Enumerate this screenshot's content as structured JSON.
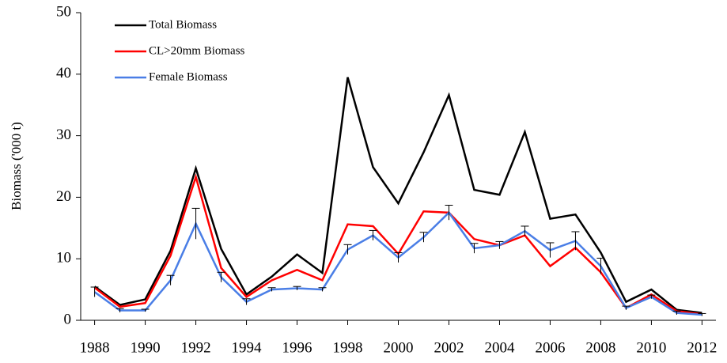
{
  "chart_data": {
    "type": "line",
    "y_label": "Biomass ('000 t)",
    "x": [
      1988,
      1989,
      1990,
      1991,
      1992,
      1993,
      1994,
      1995,
      1996,
      1997,
      1998,
      1999,
      2000,
      2001,
      2002,
      2003,
      2004,
      2005,
      2006,
      2007,
      2008,
      2009,
      2010,
      2011,
      2012
    ],
    "series": [
      {
        "name": "Total Biomass",
        "color": "#000000",
        "values": [
          5.5,
          2.5,
          3.4,
          11.3,
          24.7,
          11.6,
          4.2,
          7.1,
          10.7,
          7.7,
          39.5,
          24.9,
          19.0,
          27.3,
          36.6,
          21.2,
          20.4,
          30.6,
          16.5,
          17.2,
          11.0,
          3.0,
          5.0,
          1.7,
          1.2
        ]
      },
      {
        "name": "CL>20mm Biomass",
        "color": "#ff0000",
        "values": [
          5.3,
          2.2,
          2.8,
          10.5,
          23.3,
          8.5,
          3.8,
          6.5,
          8.2,
          6.5,
          15.6,
          15.3,
          10.8,
          17.7,
          17.5,
          13.2,
          12.2,
          13.8,
          8.8,
          11.8,
          7.8,
          2.0,
          4.2,
          1.5,
          1.0
        ]
      },
      {
        "name": "Female Biomass",
        "color": "#4a7ee6",
        "values": [
          4.6,
          1.6,
          1.6,
          6.5,
          15.7,
          7.0,
          3.0,
          5.0,
          5.2,
          5.0,
          11.5,
          13.8,
          10.2,
          13.5,
          17.5,
          11.7,
          12.2,
          14.5,
          11.4,
          12.9,
          8.8,
          2.0,
          3.8,
          1.2,
          0.9
        ],
        "errors": [
          0.8,
          0.3,
          0.2,
          0.8,
          2.5,
          0.8,
          0.5,
          0.3,
          0.3,
          0.3,
          0.8,
          0.8,
          0.8,
          0.8,
          1.2,
          0.8,
          0.6,
          0.8,
          1.2,
          1.5,
          1.3,
          0.3,
          0.3,
          0.3,
          0.2
        ]
      }
    ],
    "xlim": [
      1987.45,
      2012.55
    ],
    "xticks": [
      1988,
      1990,
      1992,
      1994,
      1996,
      1998,
      2000,
      2002,
      2004,
      2006,
      2008,
      2010,
      2012
    ],
    "ylim": [
      0,
      50
    ],
    "yticks": [
      0,
      10,
      20,
      30,
      40,
      50
    ],
    "legend": "upper-left"
  }
}
